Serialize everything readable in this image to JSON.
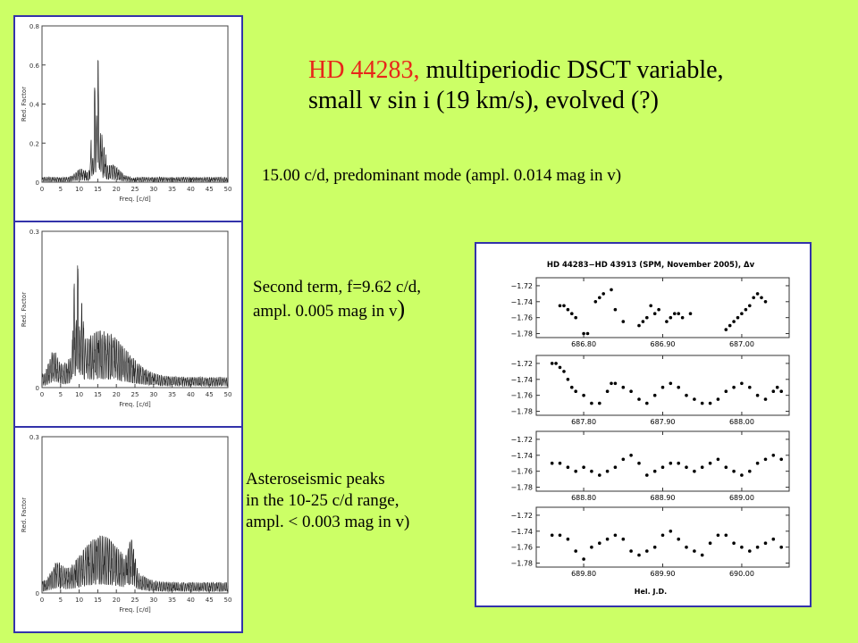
{
  "title": {
    "star_name": "HD 44283,",
    "rest_line1": " multiperiodic DSCT variable,",
    "line2": "small v sin i (19 km/s), evolved (?)"
  },
  "captions": {
    "mode1": "15.00 c/d, predominant mode (ampl. 0.014 mag in v)",
    "term2_line1": "Second term, f=9.62 c/d,",
    "term2_line2": " ampl. 0.005 mag in v",
    "term2_paren": ")",
    "peaks_line1": "Asteroseismic peaks",
    "peaks_line2": "in the 10-25 c/d range,",
    "peaks_line3": "ampl. < 0.003 mag in v)"
  },
  "periodograms": {
    "ylabel": "Red. Factor",
    "xlabel": "Freq. [c/d]",
    "xticks": [
      "0",
      "5",
      "10",
      "15",
      "20",
      "25",
      "30",
      "35",
      "40",
      "45",
      "50"
    ],
    "panels": [
      {
        "yticks": [
          "0",
          "0.2",
          "0.4",
          "0.6",
          "0.8"
        ],
        "ymax": 0.8
      },
      {
        "yticks": [
          "0",
          "0.3"
        ],
        "ymax": 0.3
      },
      {
        "yticks": [
          "0",
          "0.3"
        ],
        "ymax": 0.3
      }
    ]
  },
  "chart_data": {
    "type": "scatter",
    "title": "HD 44283−HD 43913 (SPM, November 2005), Δv",
    "xlabel": "Hel. J.D.",
    "ylim": [
      -1.785,
      -1.71
    ],
    "ytick_labels": [
      "−1.72",
      "−1.74",
      "−1.76",
      "−1.78"
    ],
    "panels": [
      {
        "xlim": [
          686.74,
          687.06
        ],
        "xticks": [
          "686.80",
          "686.90",
          "687.00"
        ],
        "x": [
          686.77,
          686.775,
          686.78,
          686.785,
          686.79,
          686.8,
          686.805,
          686.815,
          686.82,
          686.825,
          686.835,
          686.84,
          686.85,
          686.87,
          686.875,
          686.88,
          686.885,
          686.89,
          686.895,
          686.905,
          686.91,
          686.915,
          686.92,
          686.925,
          686.935,
          686.98,
          686.985,
          686.99,
          686.995,
          687.0,
          687.005,
          687.01,
          687.015,
          687.02,
          687.025,
          687.03
        ],
        "y": [
          -1.745,
          -1.745,
          -1.75,
          -1.755,
          -1.76,
          -1.78,
          -1.78,
          -1.74,
          -1.735,
          -1.73,
          -1.725,
          -1.75,
          -1.765,
          -1.77,
          -1.765,
          -1.76,
          -1.745,
          -1.755,
          -1.75,
          -1.765,
          -1.76,
          -1.755,
          -1.755,
          -1.76,
          -1.755,
          -1.775,
          -1.77,
          -1.765,
          -1.76,
          -1.755,
          -1.75,
          -1.745,
          -1.735,
          -1.73,
          -1.735,
          -1.74
        ]
      },
      {
        "xlim": [
          687.74,
          688.06
        ],
        "xticks": [
          "687.80",
          "687.90",
          "688.00"
        ],
        "x": [
          687.76,
          687.765,
          687.77,
          687.775,
          687.78,
          687.785,
          687.79,
          687.8,
          687.81,
          687.82,
          687.83,
          687.835,
          687.84,
          687.85,
          687.86,
          687.87,
          687.88,
          687.89,
          687.9,
          687.91,
          687.92,
          687.93,
          687.94,
          687.95,
          687.96,
          687.97,
          687.98,
          687.99,
          688.0,
          688.01,
          688.02,
          688.03,
          688.04,
          688.045,
          688.05
        ],
        "y": [
          -1.72,
          -1.72,
          -1.725,
          -1.73,
          -1.74,
          -1.75,
          -1.755,
          -1.76,
          -1.77,
          -1.77,
          -1.755,
          -1.745,
          -1.745,
          -1.75,
          -1.755,
          -1.765,
          -1.77,
          -1.76,
          -1.75,
          -1.745,
          -1.75,
          -1.76,
          -1.765,
          -1.77,
          -1.77,
          -1.765,
          -1.755,
          -1.75,
          -1.745,
          -1.75,
          -1.76,
          -1.765,
          -1.755,
          -1.75,
          -1.755
        ]
      },
      {
        "xlim": [
          688.74,
          689.06
        ],
        "xticks": [
          "688.80",
          "688.90",
          "689.00"
        ],
        "x": [
          688.76,
          688.77,
          688.78,
          688.79,
          688.8,
          688.81,
          688.82,
          688.83,
          688.84,
          688.85,
          688.86,
          688.87,
          688.88,
          688.89,
          688.9,
          688.91,
          688.92,
          688.93,
          688.94,
          688.95,
          688.96,
          688.97,
          688.98,
          688.99,
          689.0,
          689.01,
          689.02,
          689.03,
          689.04,
          689.05
        ],
        "y": [
          -1.75,
          -1.75,
          -1.755,
          -1.76,
          -1.755,
          -1.76,
          -1.765,
          -1.76,
          -1.755,
          -1.745,
          -1.74,
          -1.75,
          -1.765,
          -1.76,
          -1.755,
          -1.75,
          -1.75,
          -1.755,
          -1.76,
          -1.755,
          -1.75,
          -1.745,
          -1.755,
          -1.76,
          -1.765,
          -1.76,
          -1.75,
          -1.745,
          -1.74,
          -1.745
        ]
      },
      {
        "xlim": [
          689.74,
          690.06
        ],
        "xticks": [
          "689.80",
          "689.90",
          "690.00"
        ],
        "x": [
          689.76,
          689.77,
          689.78,
          689.79,
          689.8,
          689.81,
          689.82,
          689.83,
          689.84,
          689.85,
          689.86,
          689.87,
          689.88,
          689.89,
          689.9,
          689.91,
          689.92,
          689.93,
          689.94,
          689.95,
          689.96,
          689.97,
          689.98,
          689.99,
          690.0,
          690.01,
          690.02,
          690.03,
          690.04,
          690.05
        ],
        "y": [
          -1.745,
          -1.745,
          -1.75,
          -1.765,
          -1.775,
          -1.76,
          -1.755,
          -1.75,
          -1.745,
          -1.75,
          -1.765,
          -1.77,
          -1.765,
          -1.76,
          -1.745,
          -1.74,
          -1.75,
          -1.76,
          -1.765,
          -1.77,
          -1.755,
          -1.745,
          -1.745,
          -1.755,
          -1.76,
          -1.765,
          -1.76,
          -1.755,
          -1.75,
          -1.76
        ]
      }
    ]
  },
  "colors": {
    "background": "#ccff66",
    "frame": "#3333aa",
    "highlight": "#e8261a"
  }
}
